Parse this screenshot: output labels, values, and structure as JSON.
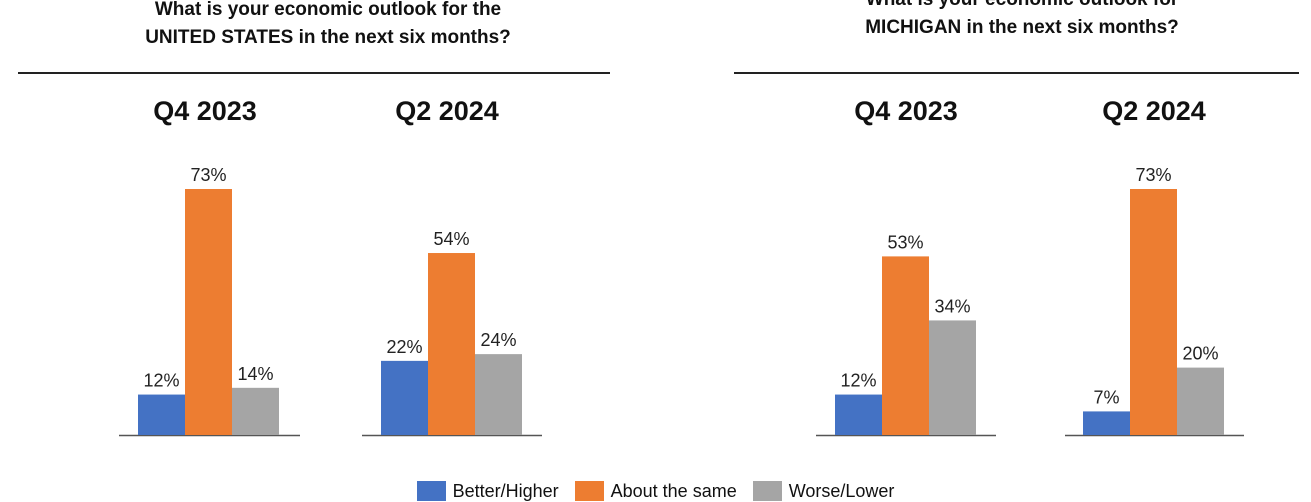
{
  "colors": {
    "better": "#4472c4",
    "same": "#ed7d31",
    "worse": "#a5a5a5"
  },
  "legend": [
    {
      "key": "better",
      "label": "Better/Higher"
    },
    {
      "key": "same",
      "label": "About the same"
    },
    {
      "key": "worse",
      "label": "Worse/Lower"
    }
  ],
  "panels": [
    {
      "title_line1": "What is your economic outlook for the",
      "title_line2": "UNITED STATES in the next six months?"
    },
    {
      "title_line1": "What is your economic outlook for",
      "title_line2": "MICHIGAN in the next six months?"
    }
  ],
  "chart_data": [
    {
      "type": "bar",
      "title": "What is your economic outlook for the UNITED STATES in the next six months?",
      "categories": [
        "Q4 2023",
        "Q2 2024"
      ],
      "series": [
        {
          "name": "Better/Higher",
          "values": [
            12,
            22
          ]
        },
        {
          "name": "About the same",
          "values": [
            73,
            54
          ]
        },
        {
          "name": "Worse/Lower",
          "values": [
            14,
            24
          ]
        }
      ],
      "value_labels": [
        [
          "12%",
          "73%",
          "14%"
        ],
        [
          "22%",
          "54%",
          "24%"
        ]
      ],
      "ylim": [
        0,
        73
      ],
      "grid": false,
      "legend_position": "bottom"
    },
    {
      "type": "bar",
      "title": "What is your economic outlook for MICHIGAN in the next six months?",
      "categories": [
        "Q4 2023",
        "Q2 2024"
      ],
      "series": [
        {
          "name": "Better/Higher",
          "values": [
            12,
            7
          ]
        },
        {
          "name": "About the same",
          "values": [
            53,
            73
          ]
        },
        {
          "name": "Worse/Lower",
          "values": [
            34,
            20
          ]
        }
      ],
      "value_labels": [
        [
          "12%",
          "53%",
          "34%"
        ],
        [
          "7%",
          "73%",
          "20%"
        ]
      ],
      "ylim": [
        0,
        73
      ],
      "grid": false,
      "legend_position": "bottom"
    }
  ]
}
